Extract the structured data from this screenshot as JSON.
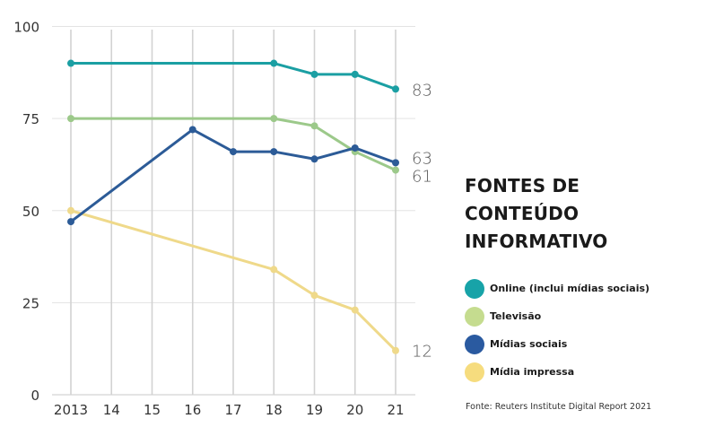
{
  "chart_data": {
    "type": "line",
    "title": "FONTES DE CONTEÚDO INFORMATIVO",
    "title_lines": [
      "FONTES DE",
      "CONTEÚDO",
      "INFORMATIVO"
    ],
    "xlabel": "",
    "ylabel": "",
    "x": [
      "2013",
      "14",
      "15",
      "16",
      "17",
      "18",
      "19",
      "20",
      "21"
    ],
    "yticks": [
      "0",
      "25",
      "50",
      "75",
      "100"
    ],
    "ylim": [
      0,
      100
    ],
    "grid": true,
    "legend_position": "right",
    "series": [
      {
        "name": "Online (inclui mídias sociais)",
        "color": "#1b9fa3",
        "legend_color": "#17a3a8",
        "points": [
          {
            "x": "2013",
            "y": 90
          },
          {
            "x": "18",
            "y": 90
          },
          {
            "x": "19",
            "y": 87
          },
          {
            "x": "20",
            "y": 87
          },
          {
            "x": "21",
            "y": 83
          }
        ],
        "end_label": "83"
      },
      {
        "name": "Televisão",
        "color": "#9cc98a",
        "legend_color": "#c5dc8f",
        "points": [
          {
            "x": "2013",
            "y": 75
          },
          {
            "x": "18",
            "y": 75
          },
          {
            "x": "19",
            "y": 73
          },
          {
            "x": "20",
            "y": 66
          },
          {
            "x": "21",
            "y": 61
          }
        ],
        "end_label": "61"
      },
      {
        "name": "Mídias sociais",
        "color": "#2c5b97",
        "legend_color": "#2a5aa0",
        "points": [
          {
            "x": "2013",
            "y": 47
          },
          {
            "x": "16",
            "y": 72
          },
          {
            "x": "17",
            "y": 66
          },
          {
            "x": "18",
            "y": 66
          },
          {
            "x": "19",
            "y": 64
          },
          {
            "x": "20",
            "y": 67
          },
          {
            "x": "21",
            "y": 63
          }
        ],
        "end_label": "63"
      },
      {
        "name": "Mídia impressa",
        "color": "#efd98a",
        "legend_color": "#f6dc7e",
        "points": [
          {
            "x": "2013",
            "y": 50
          },
          {
            "x": "18",
            "y": 34
          },
          {
            "x": "19",
            "y": 27
          },
          {
            "x": "20",
            "y": 23
          },
          {
            "x": "21",
            "y": 12
          }
        ],
        "end_label": "12"
      }
    ],
    "source": "Fonte: Reuters Institute Digital Report 2021"
  }
}
